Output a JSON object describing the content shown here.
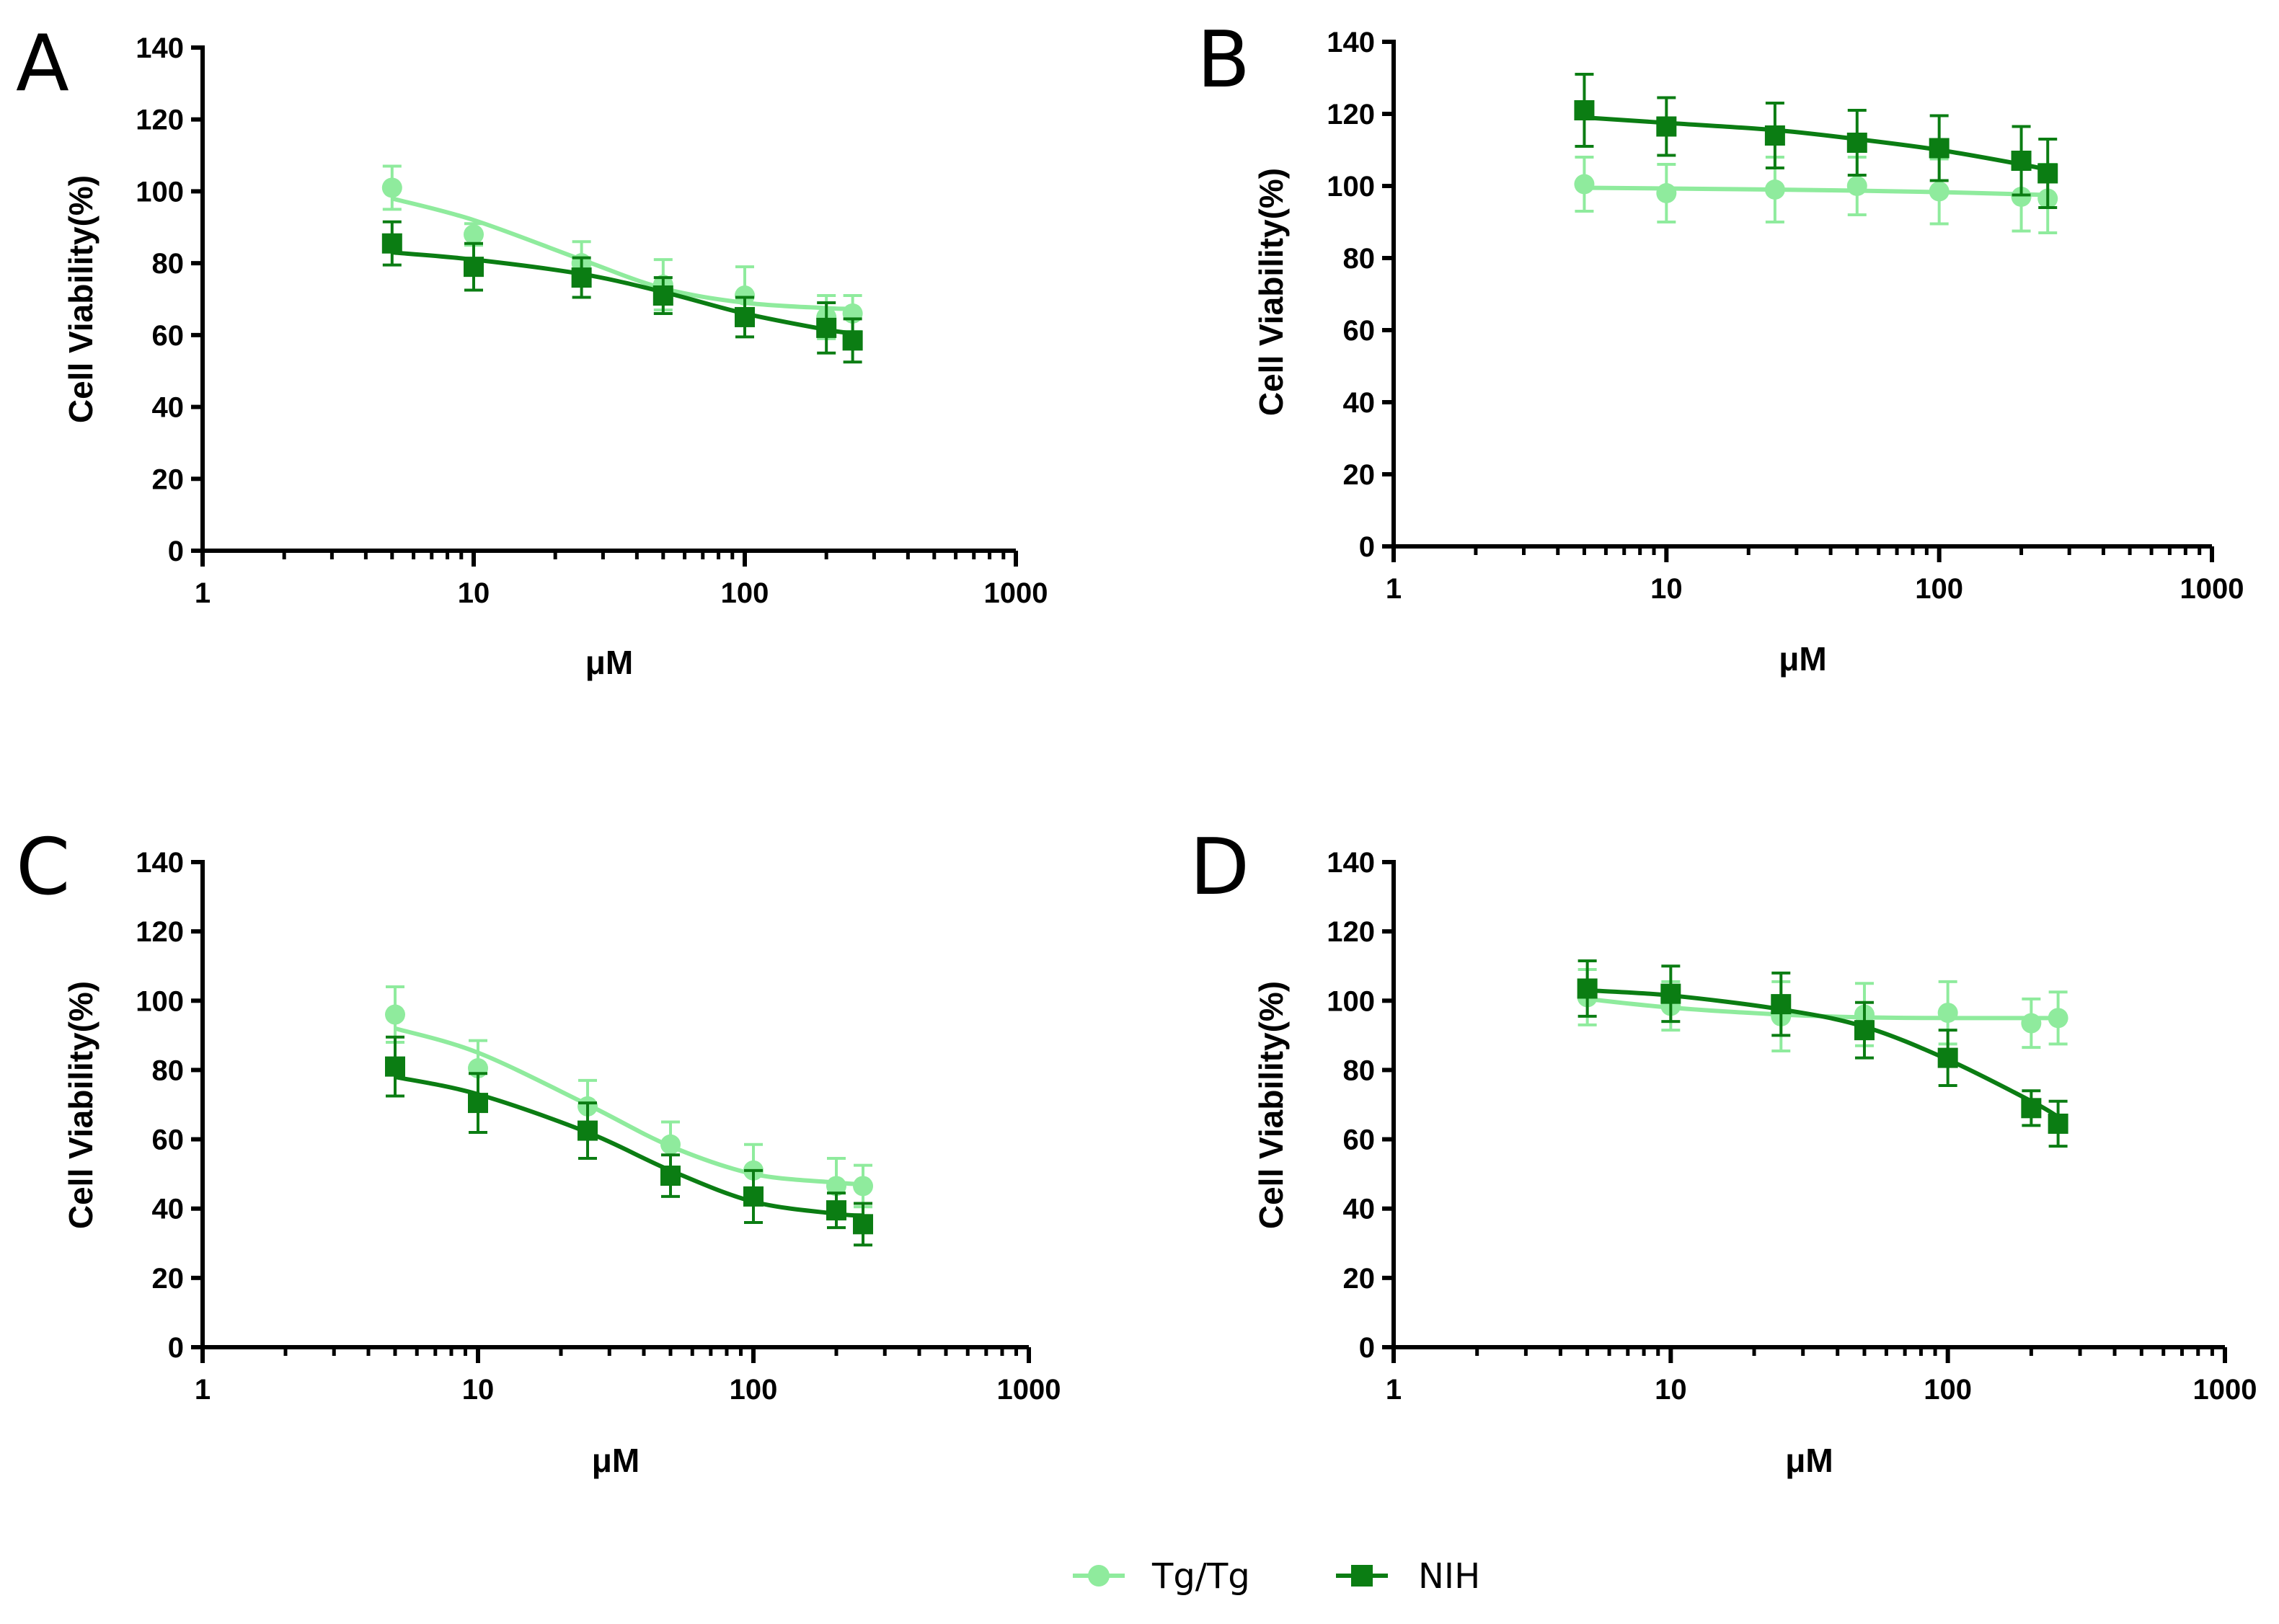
{
  "series_styles": [
    {
      "name": "Tg/Tg",
      "color": "#8FEB9D",
      "marker": "circle"
    },
    {
      "name": "NIH",
      "color": "#0B7D13",
      "marker": "square"
    }
  ],
  "legend": {
    "items": [
      "Tg/Tg",
      "NIH"
    ]
  },
  "chart_data": [
    {
      "panel": "A",
      "type": "line",
      "xscale": "log",
      "xlabel": "μM",
      "ylabel": "Cell Viability(%)",
      "xlim": [
        1,
        1000
      ],
      "ylim": [
        0,
        140
      ],
      "xticks": [
        "1",
        "10",
        "100",
        "1000"
      ],
      "yticks": [
        "0",
        "20",
        "40",
        "60",
        "80",
        "100",
        "120",
        "140"
      ],
      "x": [
        5,
        10,
        25,
        50,
        100,
        200,
        250
      ],
      "series": [
        {
          "name": "Tg/Tg",
          "values": [
            101,
            88,
            80,
            74,
            71,
            65,
            66
          ],
          "errors": [
            6,
            3,
            6,
            7,
            8,
            6,
            5
          ],
          "fit": [
            98,
            92,
            81,
            73,
            69,
            67.5,
            67.3
          ]
        },
        {
          "name": "NIH",
          "values": [
            85.5,
            79,
            76,
            71,
            65,
            62,
            58.5
          ],
          "errors": [
            6,
            6.5,
            5.5,
            5,
            5.5,
            7,
            6
          ],
          "fit": [
            83,
            81,
            77,
            72,
            66,
            61.5,
            60.5
          ]
        }
      ]
    },
    {
      "panel": "B",
      "type": "line",
      "xscale": "log",
      "xlabel": "μM",
      "ylabel": "Cell Viability(%)",
      "xlim": [
        1,
        1000
      ],
      "ylim": [
        0,
        140
      ],
      "xticks": [
        "1",
        "10",
        "100",
        "1000"
      ],
      "yticks": [
        "0",
        "20",
        "40",
        "60",
        "80",
        "100",
        "120",
        "140"
      ],
      "x": [
        5,
        10,
        25,
        50,
        100,
        200,
        250
      ],
      "series": [
        {
          "name": "Tg/Tg",
          "values": [
            100.5,
            98,
            99,
            100,
            98.5,
            97,
            96.5
          ],
          "errors": [
            7.5,
            8,
            9,
            8,
            9,
            9.5,
            9.5
          ],
          "fit": [
            99.5,
            99.3,
            99,
            98.7,
            98.3,
            97.7,
            97.5
          ]
        },
        {
          "name": "NIH",
          "values": [
            121,
            116.5,
            114,
            112,
            110.5,
            107,
            103.5
          ],
          "errors": [
            10,
            8,
            9,
            9,
            9,
            9.5,
            9.5
          ],
          "fit": [
            119,
            117.5,
            115.5,
            113,
            110,
            106,
            104.5
          ]
        }
      ]
    },
    {
      "panel": "C",
      "type": "line",
      "xscale": "log",
      "xlabel": "μM",
      "ylabel": "Cell Viability(%)",
      "xlim": [
        1,
        1000
      ],
      "ylim": [
        0,
        140
      ],
      "xticks": [
        "1",
        "10",
        "100",
        "1000"
      ],
      "yticks": [
        "0",
        "20",
        "40",
        "60",
        "80",
        "100",
        "120",
        "140"
      ],
      "x": [
        5,
        10,
        25,
        50,
        100,
        200,
        250
      ],
      "series": [
        {
          "name": "Tg/Tg",
          "values": [
            96,
            80.5,
            69.5,
            58.5,
            51,
            46.5,
            46.5
          ],
          "errors": [
            8,
            8,
            7.5,
            6.5,
            7.5,
            8,
            6
          ],
          "fit": [
            92,
            85,
            70,
            58,
            50,
            47.5,
            47
          ]
        },
        {
          "name": "NIH",
          "values": [
            81,
            70.5,
            62.5,
            49.5,
            43.5,
            39.5,
            35.5
          ],
          "errors": [
            8.5,
            8.5,
            8,
            6,
            7.5,
            5,
            6
          ],
          "fit": [
            78,
            73,
            62,
            51,
            42,
            38.5,
            38
          ]
        }
      ]
    },
    {
      "panel": "D",
      "type": "line",
      "xscale": "log",
      "xlabel": "μM",
      "ylabel": "Cell Viability(%)",
      "xlim": [
        1,
        1000
      ],
      "ylim": [
        0,
        140
      ],
      "xticks": [
        "1",
        "10",
        "100",
        "1000"
      ],
      "yticks": [
        "0",
        "20",
        "40",
        "60",
        "80",
        "100",
        "120",
        "140"
      ],
      "x": [
        5,
        10,
        25,
        50,
        100,
        200,
        250
      ],
      "series": [
        {
          "name": "Tg/Tg",
          "values": [
            101,
            98.5,
            95.5,
            96,
            96.5,
            93.5,
            95
          ],
          "errors": [
            8,
            7,
            10,
            9,
            9,
            7,
            7.5
          ],
          "fit": [
            100.5,
            98,
            96,
            95.2,
            95,
            95,
            95
          ]
        },
        {
          "name": "NIH",
          "values": [
            103.5,
            102,
            99,
            91.5,
            83.5,
            69,
            64.5
          ],
          "errors": [
            8,
            8,
            9,
            8,
            8,
            5,
            6.5
          ],
          "fit": [
            103,
            101.5,
            97.5,
            92.5,
            83,
            71,
            66.5
          ]
        }
      ]
    }
  ]
}
